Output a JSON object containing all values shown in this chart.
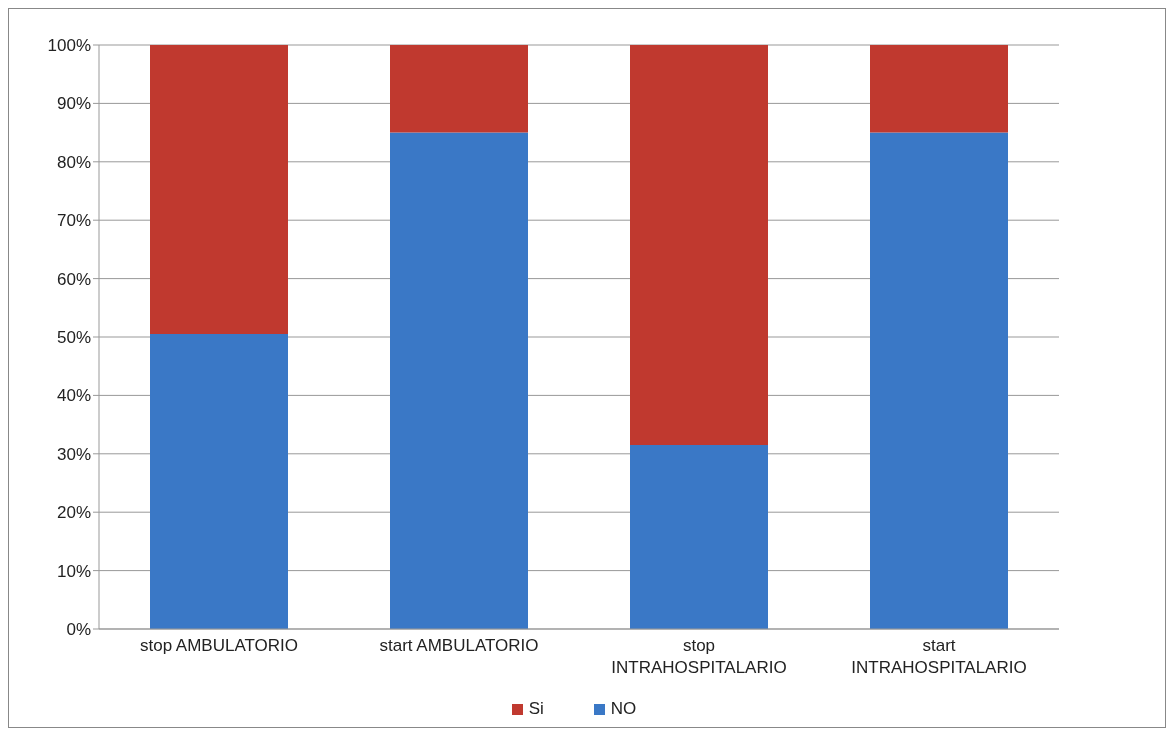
{
  "chart_data": {
    "type": "bar",
    "stacked": true,
    "categories": [
      "stop AMBULATORIO",
      "start AMBULATORIO",
      "stop INTRAHOSPITALARIO",
      "start INTRAHOSPITALARIO"
    ],
    "series": [
      {
        "name": "NO",
        "color": "#3a78c6",
        "values": [
          50.5,
          85,
          31.5,
          85
        ]
      },
      {
        "name": "Si",
        "color": "#c0392f",
        "values": [
          49.5,
          15,
          68.5,
          15
        ]
      }
    ],
    "ylim": [
      0,
      100
    ],
    "yticks": [
      {
        "value": 0,
        "label": "0%"
      },
      {
        "value": 10,
        "label": "10%"
      },
      {
        "value": 20,
        "label": "20%"
      },
      {
        "value": 30,
        "label": "30%"
      },
      {
        "value": 40,
        "label": "40%"
      },
      {
        "value": 50,
        "label": "50%"
      },
      {
        "value": 60,
        "label": "60%"
      },
      {
        "value": 70,
        "label": "70%"
      },
      {
        "value": 80,
        "label": "80%"
      },
      {
        "value": 90,
        "label": "90%"
      },
      {
        "value": 100,
        "label": "100%"
      }
    ],
    "grid": "y",
    "legend": "bottom"
  }
}
